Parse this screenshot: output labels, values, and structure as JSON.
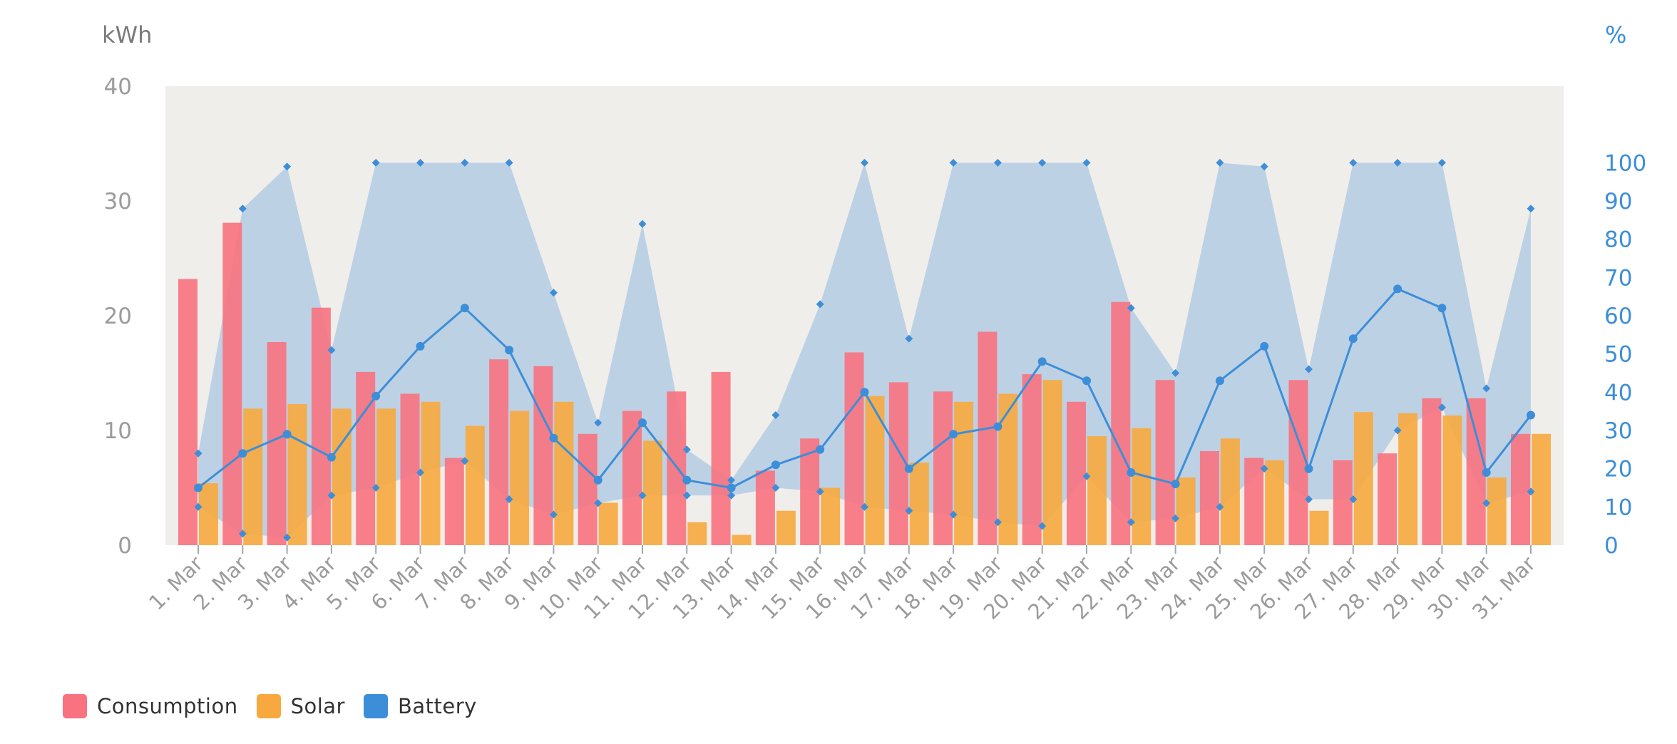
{
  "chart_data": {
    "type": "bar",
    "y_left_label": "kWh",
    "y_right_label": "%",
    "y_left_range": [
      0,
      40
    ],
    "y_left_ticks": [
      "0",
      "10",
      "20",
      "30",
      "40"
    ],
    "y_right_range": [
      0,
      120
    ],
    "y_right_ticks": [
      "0",
      "10",
      "20",
      "30",
      "40",
      "50",
      "60",
      "70",
      "80",
      "90",
      "100"
    ],
    "grid": false,
    "legend_position": "bottom-left",
    "categories": [
      "1. Mar",
      "2. Mar",
      "3. Mar",
      "4. Mar",
      "5. Mar",
      "6. Mar",
      "7. Mar",
      "8. Mar",
      "9. Mar",
      "10. Mar",
      "11. Mar",
      "12. Mar",
      "13. Mar",
      "14. Mar",
      "15. Mar",
      "16. Mar",
      "17. Mar",
      "18. Mar",
      "19. Mar",
      "20. Mar",
      "21. Mar",
      "22. Mar",
      "23. Mar",
      "24. Mar",
      "25. Mar",
      "26. Mar",
      "27. Mar",
      "28. Mar",
      "29. Mar",
      "30. Mar",
      "31. Mar"
    ],
    "series": [
      {
        "name": "Consumption",
        "type": "bar",
        "axis": "left",
        "color": "#f8727f",
        "values": [
          23.2,
          28.1,
          17.7,
          20.7,
          15.1,
          13.2,
          7.6,
          16.2,
          15.6,
          9.7,
          11.7,
          13.4,
          15.1,
          6.5,
          9.3,
          16.8,
          14.2,
          13.4,
          18.6,
          14.9,
          12.5,
          21.2,
          14.4,
          8.2,
          7.6,
          14.4,
          7.4,
          8.0,
          12.8,
          12.8,
          9.7
        ]
      },
      {
        "name": "Solar",
        "type": "bar",
        "axis": "left",
        "color": "#f7a83e",
        "values": [
          5.4,
          11.9,
          12.3,
          11.9,
          11.9,
          12.5,
          10.4,
          11.7,
          12.5,
          3.7,
          9.1,
          2.0,
          0.9,
          3.0,
          5.0,
          13.0,
          7.2,
          12.5,
          13.2,
          14.4,
          9.5,
          10.2,
          5.9,
          9.3,
          7.4,
          3.0,
          11.6,
          11.5,
          11.3,
          5.9,
          9.7
        ]
      },
      {
        "name": "Battery",
        "type": "line",
        "axis": "right",
        "color": "#3d8ed8",
        "values": [
          15,
          24,
          29,
          23,
          39,
          52,
          62,
          51,
          28,
          17,
          32,
          17,
          15,
          21,
          25,
          40,
          20,
          29,
          31,
          48,
          43,
          19,
          16,
          43,
          52,
          20,
          54,
          67,
          62,
          19,
          34
        ],
        "min_values": [
          10,
          3,
          2,
          13,
          15,
          19,
          22,
          12,
          8,
          11,
          13,
          13,
          13,
          15,
          14,
          10,
          9,
          8,
          6,
          5,
          18,
          6,
          7,
          10,
          20,
          12,
          12,
          30,
          36,
          11,
          14
        ],
        "max_values": [
          24,
          88,
          99,
          51,
          100,
          100,
          100,
          100,
          66,
          32,
          84,
          25,
          17,
          34,
          63,
          100,
          54,
          100,
          100,
          100,
          100,
          62,
          45,
          100,
          99,
          46,
          100,
          100,
          100,
          41,
          88
        ]
      }
    ]
  },
  "legend": {
    "items": [
      {
        "label": "Consumption",
        "color": "#f8727f"
      },
      {
        "label": "Solar",
        "color": "#f7a83e"
      },
      {
        "label": "Battery",
        "color": "#3d8ed8"
      }
    ]
  },
  "colors": {
    "plot_background": "#f0eeeb",
    "battery_range_fill": "#a9c6e2",
    "left_axis_text": "#9b9b9b",
    "right_axis_text": "#3d8ed8"
  }
}
